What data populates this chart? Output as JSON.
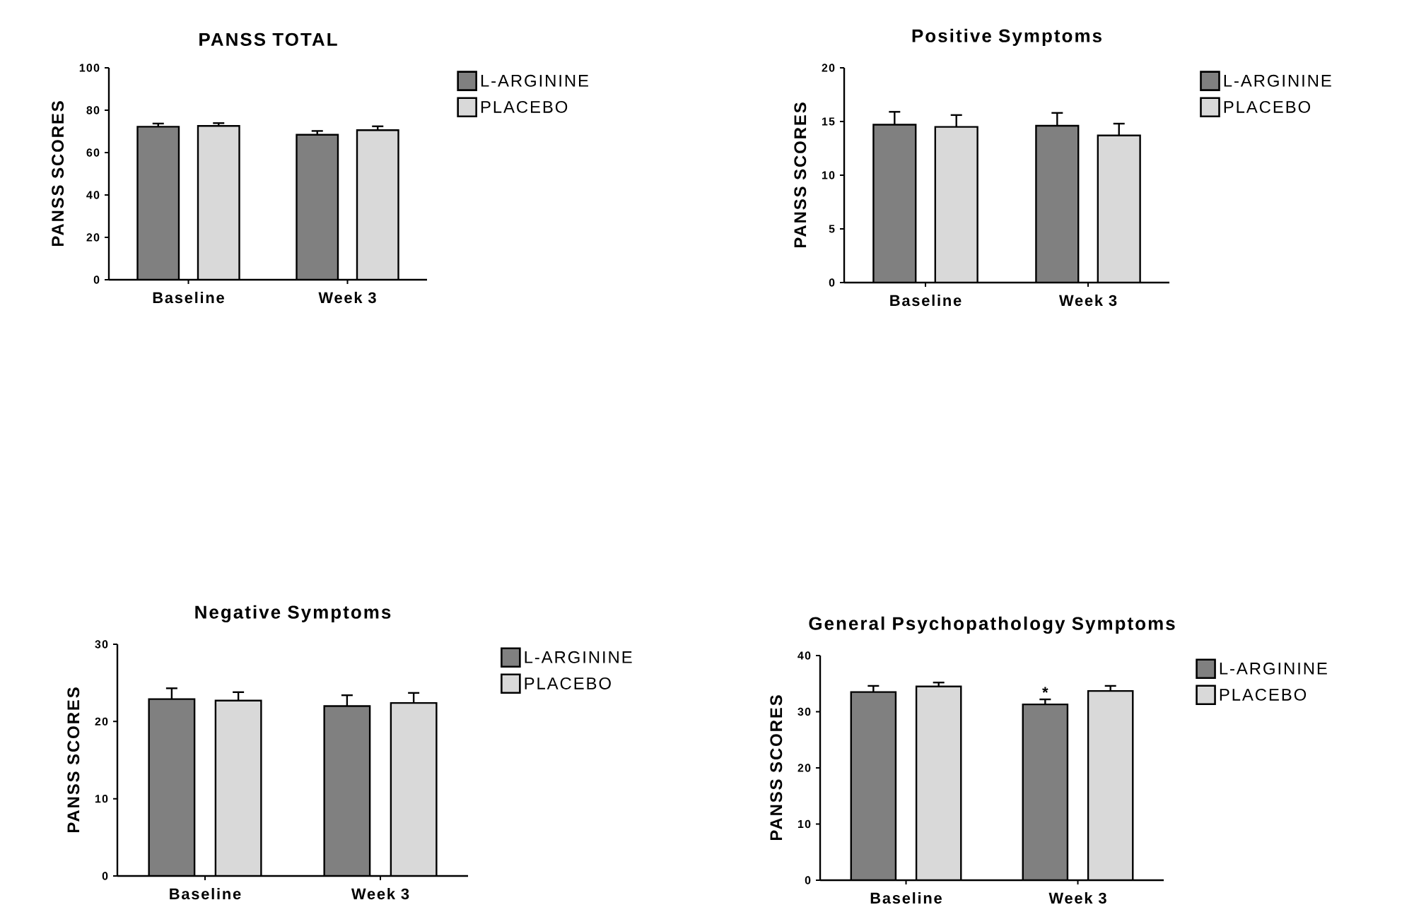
{
  "chart_data": [
    {
      "type": "bar",
      "title": "PANSS TOTAL",
      "ylabel": "PANSS SCORES",
      "categories": [
        "Baseline",
        "Week 3"
      ],
      "series": [
        {
          "name": "L-ARGININE",
          "color": "#808080",
          "values": [
            72.2,
            68.4
          ],
          "errors": [
            1.5,
            1.8
          ]
        },
        {
          "name": "PLACEBO",
          "color": "#d9d9d9",
          "values": [
            72.6,
            70.6
          ],
          "errors": [
            1.3,
            1.8
          ]
        }
      ],
      "ylim": [
        0,
        100
      ],
      "yticks": [
        0,
        20,
        40,
        60,
        80,
        100
      ],
      "legend": "right"
    },
    {
      "type": "bar",
      "title": "Positive Symptoms",
      "ylabel": "PANSS SCORES",
      "categories": [
        "Baseline",
        "Week 3"
      ],
      "series": [
        {
          "name": "L-ARGININE",
          "color": "#808080",
          "values": [
            14.7,
            14.6
          ],
          "errors": [
            1.2,
            1.2
          ]
        },
        {
          "name": "PLACEBO",
          "color": "#d9d9d9",
          "values": [
            14.5,
            13.7
          ],
          "errors": [
            1.1,
            1.1
          ]
        }
      ],
      "ylim": [
        0,
        20
      ],
      "yticks": [
        0,
        5,
        10,
        15,
        20
      ],
      "legend": "right"
    },
    {
      "type": "bar",
      "title": "Negative Symptoms",
      "ylabel": "PANSS SCORES",
      "categories": [
        "Baseline",
        "Week 3"
      ],
      "series": [
        {
          "name": "L-ARGININE",
          "color": "#808080",
          "values": [
            22.9,
            22.0
          ],
          "errors": [
            1.4,
            1.4
          ]
        },
        {
          "name": "PLACEBO",
          "color": "#d9d9d9",
          "values": [
            22.7,
            22.4
          ],
          "errors": [
            1.1,
            1.3
          ]
        }
      ],
      "ylim": [
        0,
        30
      ],
      "yticks": [
        0,
        10,
        20,
        30
      ],
      "legend": "right"
    },
    {
      "type": "bar",
      "title": "General Psychopathology Symptoms",
      "ylabel": "PANSS SCORES",
      "categories": [
        "Baseline",
        "Week 3"
      ],
      "series": [
        {
          "name": "L-ARGININE",
          "color": "#808080",
          "values": [
            33.5,
            31.3
          ],
          "errors": [
            1.1,
            0.9
          ]
        },
        {
          "name": "PLACEBO",
          "color": "#d9d9d9",
          "values": [
            34.5,
            33.7
          ],
          "errors": [
            0.7,
            0.9
          ]
        }
      ],
      "ylim": [
        0,
        40
      ],
      "yticks": [
        0,
        10,
        20,
        30,
        40
      ],
      "legend": "right",
      "annotations": [
        "*"
      ]
    }
  ]
}
